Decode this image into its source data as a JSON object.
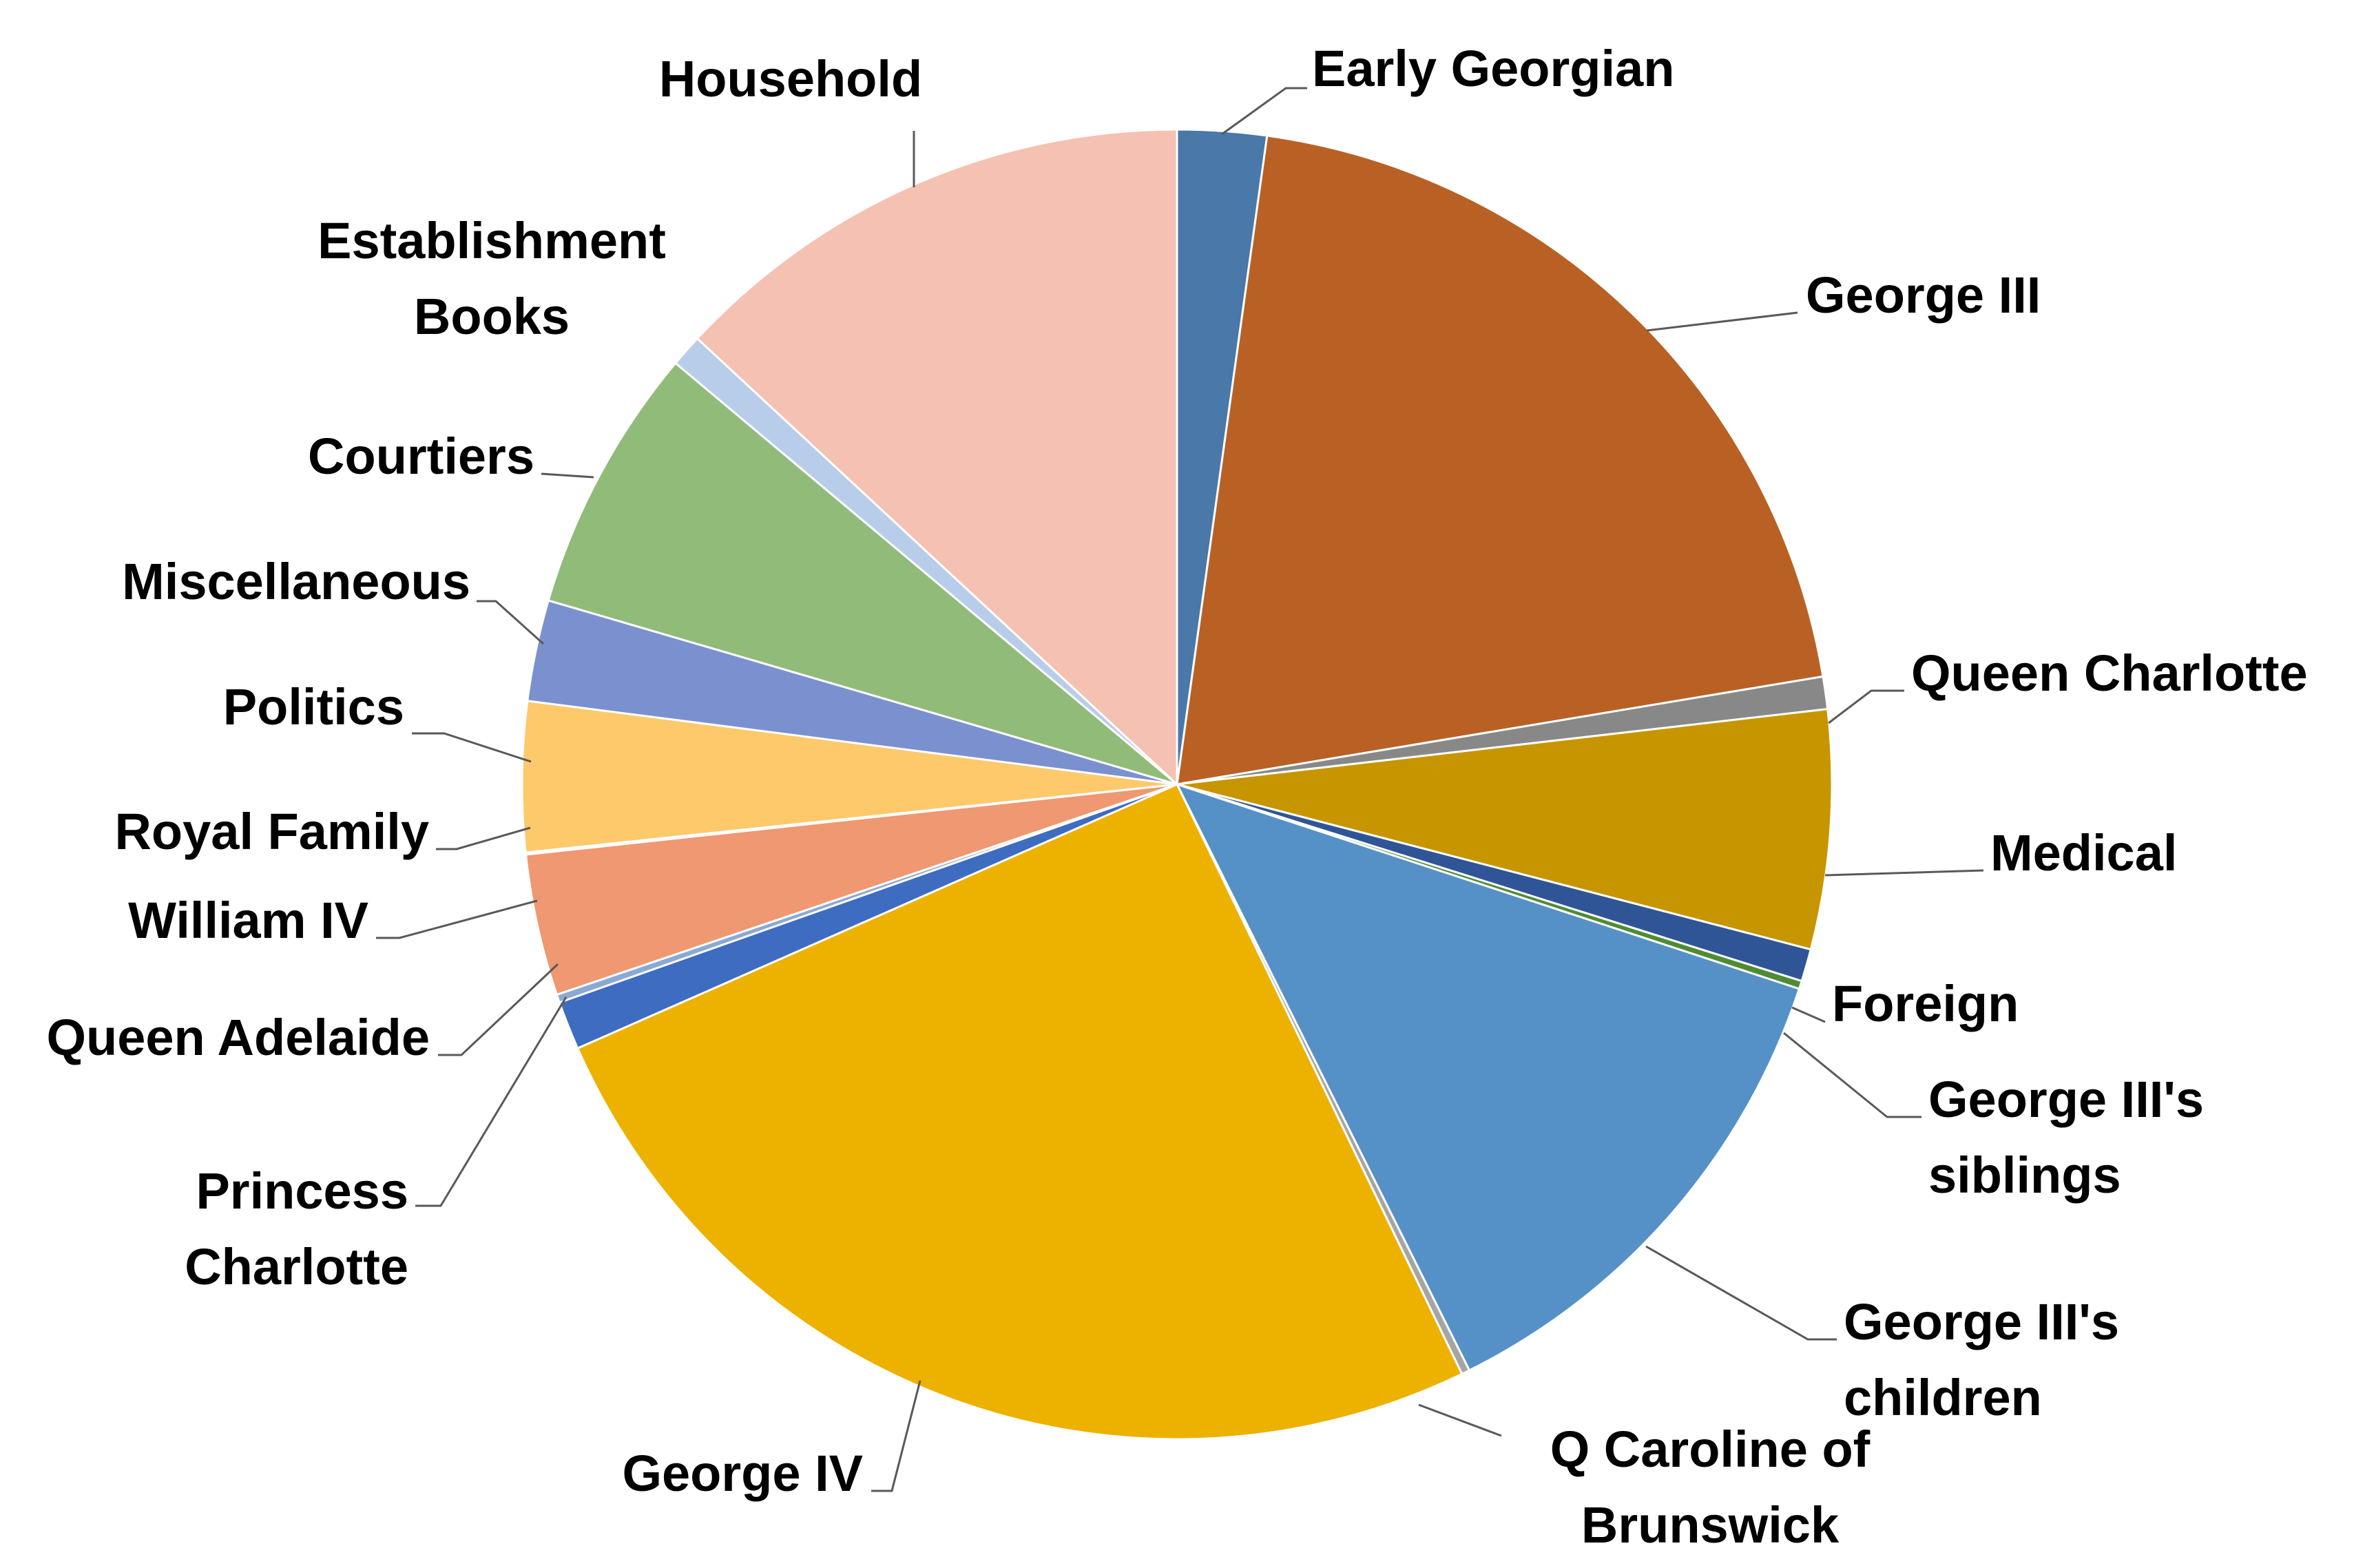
{
  "chart_data": {
    "type": "pie",
    "title": "",
    "start_angle_deg": 0,
    "direction": "clockwise",
    "slices": [
      {
        "label": "Early Georgian",
        "value": 2.2,
        "color": "#4a78a8"
      },
      {
        "label": "George III",
        "value": 20.2,
        "color": "#b96124"
      },
      {
        "label": "Queen Charlotte",
        "value": 0.8,
        "color": "#888888"
      },
      {
        "label": "Medical",
        "value": 5.9,
        "color": "#c79500"
      },
      {
        "label": "Foreign",
        "value": 0.8,
        "color": "#2f5597"
      },
      {
        "label": "George III's siblings",
        "value": 0.2,
        "color": "#4f8b32"
      },
      {
        "label": "George III's children",
        "value": 12.6,
        "color": "#5591c7"
      },
      {
        "label": "Q Caroline of Brunswick",
        "value": 0.2,
        "color": "#a5a5a5"
      },
      {
        "label": "George IV",
        "value": 25.6,
        "color": "#edb100"
      },
      {
        "label": "Princess Charlotte",
        "value": 1.2,
        "color": "#3e6cc0"
      },
      {
        "label": "Queen Adelaide",
        "value": 0.2,
        "color": "#8aa9d6"
      },
      {
        "label": "William IV",
        "value": 3.5,
        "color": "#ef9871"
      },
      {
        "label": "Royal Family",
        "value": 0.05,
        "color": "#bcbcbc"
      },
      {
        "label": "Politics",
        "value": 3.7,
        "color": "#fdc96b"
      },
      {
        "label": "Miscellaneous",
        "value": 2.5,
        "color": "#7b91cf"
      },
      {
        "label": "Courtiers",
        "value": 6.6,
        "color": "#91bb78"
      },
      {
        "label": "Establishment Books",
        "value": 0.8,
        "color": "#b8cde9"
      },
      {
        "label": "Household",
        "value": 13.1,
        "color": "#f4c1b2"
      }
    ]
  }
}
